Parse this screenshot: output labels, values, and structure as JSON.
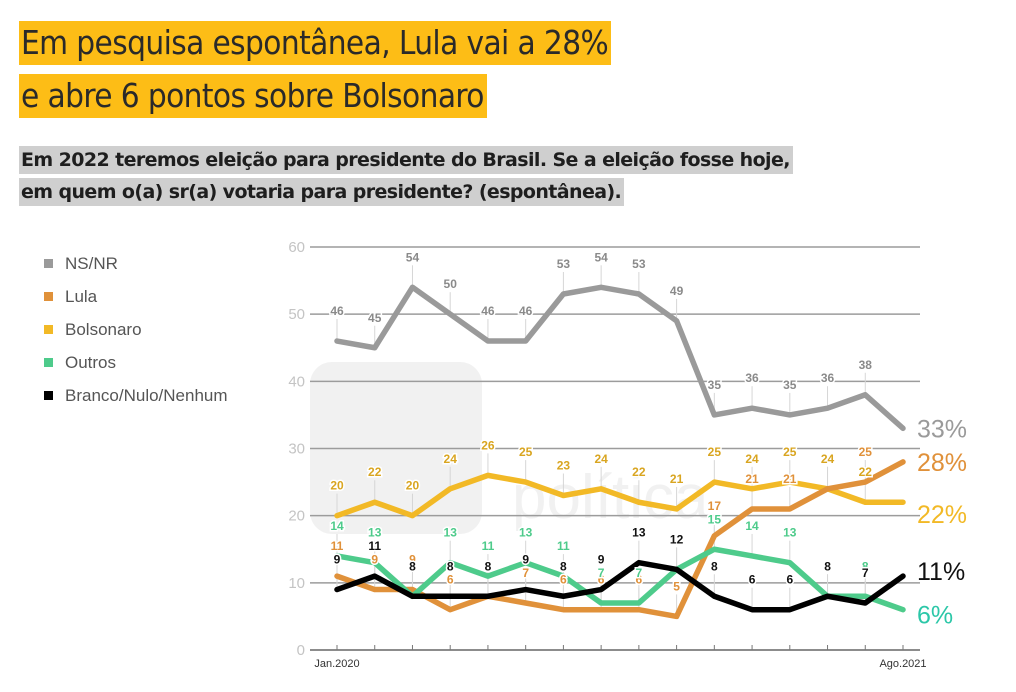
{
  "header": {
    "title_line1": "Em pesquisa espontânea, Lula vai a 28%",
    "title_line2": "e abre 6 pontos sobre Bolsonaro",
    "subtitle_line1": "Em 2022 teremos eleição para presidente do Brasil. Se a eleição fosse hoje,",
    "subtitle_line2": "em quem o(a) sr(a) votaria para presidente? (espontânea)."
  },
  "watermark": "XP política",
  "chart_data": {
    "type": "line",
    "title": "Em pesquisa espontânea, Lula vai a 28% e abre 6 pontos sobre Bolsonaro",
    "xlabel": "",
    "ylabel": "",
    "ylim": [
      0,
      60
    ],
    "yticks": [
      0,
      10,
      20,
      30,
      40,
      50,
      60
    ],
    "grid": true,
    "legend_position": "left",
    "x_count": 16,
    "x_tick_labels": [
      {
        "index": 0,
        "label": "Jan.2020"
      },
      {
        "index": 15,
        "label": "Ago.2021"
      }
    ],
    "series": [
      {
        "name": "NS/NR",
        "color": "#9a9a9a",
        "label_color": "#8a8a8a",
        "end_label": "33%",
        "values": [
          46,
          45,
          54,
          50,
          46,
          46,
          53,
          54,
          53,
          49,
          35,
          36,
          35,
          36,
          38,
          33
        ]
      },
      {
        "name": "Lula",
        "color": "#e0913a",
        "label_color": "#e0913a",
        "end_label": "28%",
        "values": [
          11,
          9,
          9,
          6,
          8,
          7,
          6,
          6,
          6,
          5,
          17,
          21,
          21,
          24,
          25,
          28
        ]
      },
      {
        "name": "Bolsonaro",
        "color": "#f2b926",
        "label_color": "#d9a520",
        "end_label": "22%",
        "values": [
          20,
          22,
          20,
          24,
          26,
          25,
          23,
          24,
          22,
          21,
          25,
          24,
          25,
          24,
          22,
          22
        ]
      },
      {
        "name": "Outros",
        "color": "#4ecb8b",
        "label_color": "#4ecb8b",
        "end_label": "6%",
        "values": [
          14,
          13,
          8,
          13,
          11,
          13,
          11,
          7,
          7,
          12,
          15,
          14,
          13,
          8,
          8,
          6
        ]
      },
      {
        "name": "Branco/Nulo/Nenhum",
        "color": "#000000",
        "label_color": "#111111",
        "end_label": "11%",
        "values": [
          9,
          11,
          8,
          8,
          8,
          9,
          8,
          9,
          13,
          12,
          8,
          6,
          6,
          8,
          7,
          11
        ]
      }
    ],
    "end_label_colors": {
      "NS/NR": "#9a9a9a",
      "Lula": "#e0913a",
      "Bolsonaro": "#f2b926",
      "Outros": "#2cc7a8",
      "Branco/Nulo/Nenhum": "#111111"
    }
  }
}
